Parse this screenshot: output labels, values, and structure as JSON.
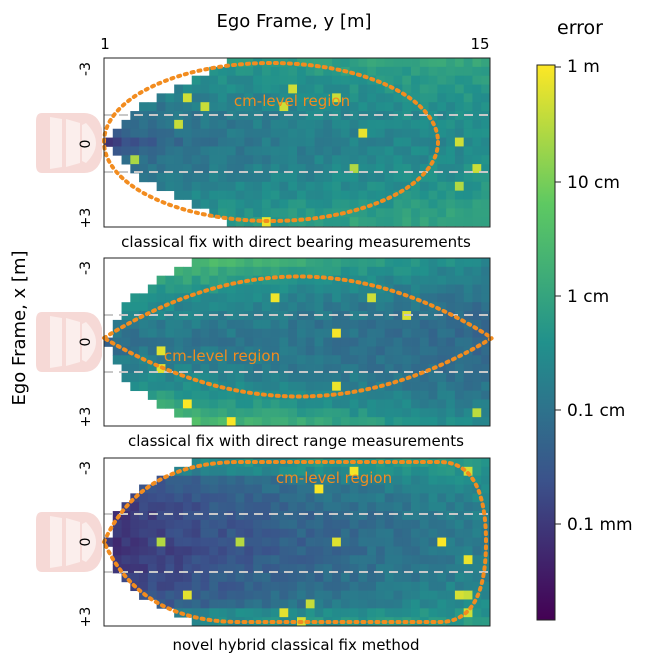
{
  "figure": {
    "x_axis_label": "Ego Frame, y [m]",
    "y_axis_label": "Ego Frame, x [m]",
    "x_ticks": [
      "1",
      "15"
    ],
    "y_ticks": [
      "-3",
      "0",
      "+3"
    ]
  },
  "colorbar": {
    "title": "error",
    "labels": [
      "1 m",
      "10 cm",
      "1 cm",
      "0.1 cm",
      "0.1 mm"
    ],
    "colormap": "viridis",
    "colors": [
      "#440154",
      "#3b528b",
      "#21918c",
      "#5ec962",
      "#fde725"
    ]
  },
  "chart_data": [
    {
      "type": "heatmap",
      "caption": "classical fix with direct bearing measurements",
      "annotation": "cm-level region",
      "x_label": "Ego Frame, y [m]",
      "y_label": "Ego Frame, x [m]",
      "xlim": [
        1,
        15
      ],
      "ylim": [
        -3,
        3
      ],
      "dashed_lines_x": [
        -1,
        1
      ],
      "color_scale": "log",
      "pattern": "bearing"
    },
    {
      "type": "heatmap",
      "caption": "classical fix with direct range measurements",
      "annotation": "cm-level region",
      "x_label": "Ego Frame, y [m]",
      "y_label": "Ego Frame, x [m]",
      "xlim": [
        1,
        15
      ],
      "ylim": [
        -3,
        3
      ],
      "dashed_lines_x": [
        -1,
        1
      ],
      "color_scale": "log",
      "pattern": "range"
    },
    {
      "type": "heatmap",
      "caption": "novel hybrid classical fix method",
      "annotation": "cm-level region",
      "x_label": "Ego Frame, y [m]",
      "y_label": "Ego Frame, x [m]",
      "xlim": [
        1,
        15
      ],
      "ylim": [
        -3,
        3
      ],
      "dashed_lines_x": [
        -1,
        1
      ],
      "color_scale": "log",
      "pattern": "hybrid"
    }
  ]
}
